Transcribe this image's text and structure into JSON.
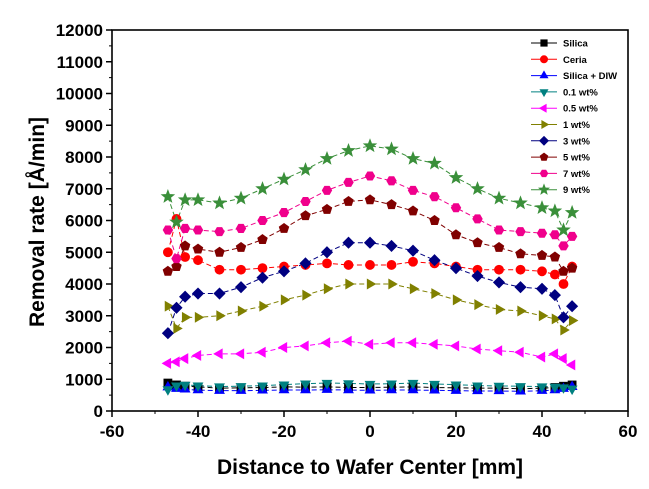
{
  "chart_data": {
    "type": "line",
    "title": "",
    "xlabel": "Distance to Wafer Center [mm]",
    "ylabel": "Removal rate [Å/min]",
    "xlim": [
      -60,
      60
    ],
    "ylim": [
      0,
      12000
    ],
    "xticks": [
      -60,
      -40,
      -20,
      0,
      20,
      40,
      60
    ],
    "yticks": [
      0,
      1000,
      2000,
      3000,
      4000,
      5000,
      6000,
      7000,
      8000,
      9000,
      10000,
      11000,
      12000
    ],
    "grid": false,
    "legend_position": "top-right",
    "x": [
      -47,
      -45,
      -43,
      -40,
      -35,
      -30,
      -25,
      -20,
      -15,
      -10,
      -5,
      0,
      5,
      10,
      15,
      20,
      25,
      30,
      35,
      40,
      43,
      45,
      47
    ],
    "series": [
      {
        "name": "Silica",
        "color": "#000000",
        "marker": "square",
        "values": [
          880,
          820,
          780,
          760,
          720,
          730,
          740,
          760,
          750,
          760,
          740,
          740,
          750,
          760,
          740,
          730,
          720,
          720,
          700,
          720,
          740,
          780,
          820
        ]
      },
      {
        "name": "Ceria",
        "color": "#FF0000",
        "marker": "circle",
        "values": [
          5000,
          6050,
          4850,
          4750,
          4450,
          4450,
          4500,
          4550,
          4600,
          4650,
          4600,
          4600,
          4600,
          4700,
          4650,
          4550,
          4450,
          4450,
          4450,
          4400,
          4300,
          4000,
          4550
        ]
      },
      {
        "name": "Silica + DIW",
        "color": "#0000FF",
        "marker": "triangle-up",
        "values": [
          750,
          700,
          680,
          660,
          640,
          640,
          650,
          660,
          660,
          670,
          660,
          650,
          660,
          660,
          650,
          640,
          630,
          630,
          620,
          640,
          660,
          700,
          760
        ]
      },
      {
        "name": "0.1 wt%",
        "color": "#008080",
        "marker": "triangle-down",
        "values": [
          680,
          800,
          820,
          800,
          770,
          780,
          800,
          830,
          860,
          880,
          870,
          850,
          860,
          880,
          850,
          830,
          800,
          790,
          780,
          770,
          760,
          740,
          700
        ]
      },
      {
        "name": "0.5 wt%",
        "color": "#FF00FF",
        "marker": "triangle-left",
        "values": [
          1500,
          1550,
          1650,
          1750,
          1800,
          1800,
          1850,
          2000,
          2050,
          2150,
          2200,
          2100,
          2150,
          2150,
          2100,
          2050,
          1950,
          1900,
          1850,
          1700,
          1800,
          1650,
          1450
        ]
      },
      {
        "name": "1 wt%",
        "color": "#808000",
        "marker": "triangle-right",
        "values": [
          3300,
          2600,
          2950,
          2950,
          3000,
          3150,
          3300,
          3500,
          3650,
          3850,
          4000,
          4000,
          4000,
          3850,
          3700,
          3500,
          3350,
          3200,
          3150,
          3000,
          2900,
          2550,
          2850
        ]
      },
      {
        "name": "3 wt%",
        "color": "#000080",
        "marker": "diamond",
        "values": [
          2450,
          3250,
          3600,
          3700,
          3700,
          3900,
          4200,
          4400,
          4650,
          5000,
          5300,
          5300,
          5200,
          5050,
          4750,
          4500,
          4250,
          4050,
          3900,
          3850,
          3650,
          2950,
          3300
        ]
      },
      {
        "name": "5 wt%",
        "color": "#800000",
        "marker": "pentagon",
        "values": [
          4400,
          4550,
          5200,
          5100,
          5000,
          5150,
          5400,
          5750,
          6150,
          6350,
          6600,
          6650,
          6500,
          6300,
          6000,
          5550,
          5300,
          5150,
          4950,
          4900,
          4850,
          4400,
          4500
        ]
      },
      {
        "name": "7 wt%",
        "color": "#F0008C",
        "marker": "hexagon",
        "values": [
          5700,
          4800,
          5750,
          5700,
          5650,
          5750,
          6000,
          6250,
          6600,
          6950,
          7200,
          7400,
          7250,
          6950,
          6750,
          6400,
          6050,
          5700,
          5650,
          5600,
          5550,
          5200,
          5500
        ]
      },
      {
        "name": "9 wt%",
        "color": "#3A8F3A",
        "marker": "star",
        "values": [
          6750,
          5950,
          6650,
          6650,
          6550,
          6700,
          7000,
          7300,
          7600,
          7950,
          8200,
          8350,
          8250,
          7950,
          7800,
          7350,
          7000,
          6700,
          6550,
          6400,
          6300,
          5700,
          6250
        ]
      }
    ]
  }
}
